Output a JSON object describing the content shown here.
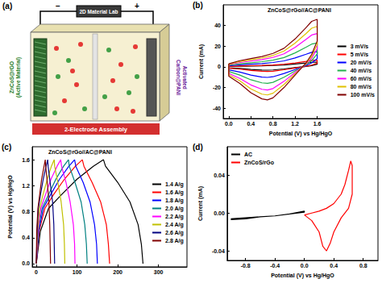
{
  "diagram": {
    "title": "(a)",
    "header": "2D Material Lab",
    "terminals": [
      "−",
      "+"
    ],
    "left_electrode": [
      "ZnCoS@rGO",
      "(Active Material)"
    ],
    "right_electrode": [
      "Activated",
      "Carbon@PANI"
    ],
    "caption": "2-Electrode Assembly"
  },
  "chart_data": [
    {
      "type": "line",
      "title": "(b)",
      "annotations": [
        "ZnCoS@rGo//AC@PANI"
      ],
      "x_label": "Potential (V) vs Hg/HgO",
      "y_label": "Current (mA)",
      "x": [
        0,
        0.2,
        0.4,
        0.6,
        0.8,
        1,
        1.2,
        1.4,
        1.5,
        1.6,
        1.6,
        1.5,
        1.4,
        1.2,
        1,
        0.8,
        0.7,
        0.6,
        0.4,
        0.2,
        0,
        0
      ],
      "series": [
        {
          "name": "3 mV/s",
          "color": "#000000",
          "values": [
            0.3,
            0.6,
            0.8,
            1,
            1.3,
            1.8,
            2.7,
            3.8,
            4.4,
            4.6,
            2.5,
            1.2,
            0.4,
            -0.8,
            -2,
            -3,
            -3.2,
            -3.1,
            -2.5,
            -1.6,
            -0.9,
            0.3
          ]
        },
        {
          "name": "5 mV/s",
          "color": "#ff0000",
          "values": [
            0.4,
            0.8,
            1.1,
            1.4,
            1.8,
            2.5,
            3.8,
            5.3,
            6.2,
            6.4,
            3.5,
            1.7,
            0.6,
            -1.1,
            -2.8,
            -4.2,
            -4.5,
            -4.3,
            -3.5,
            -2.2,
            -1.3,
            0.4
          ]
        },
        {
          "name": "20 mV/s",
          "color": "#0000ff",
          "values": [
            1,
            1.9,
            2.6,
            3.2,
            4.2,
            5.8,
            8.6,
            12.2,
            14.1,
            14.7,
            8,
            3.8,
            1.3,
            -2.6,
            -6.4,
            -9.6,
            -10.2,
            -9.9,
            -8,
            -5.1,
            -2.9,
            1
          ]
        },
        {
          "name": "40 mV/s",
          "color": "#22b14c",
          "values": [
            1.5,
            3,
            4,
            5,
            6.5,
            9,
            13.5,
            19,
            22,
            23,
            12.5,
            6,
            2,
            -4,
            -10,
            -15,
            -16,
            -15.5,
            -12.5,
            -8,
            -4.5,
            1.5
          ]
        },
        {
          "name": "60 mV/s",
          "color": "#ff00ff",
          "values": [
            2.1,
            4.2,
            5.6,
            7,
            9.1,
            12.6,
            18.9,
            26.6,
            30.8,
            32.2,
            17.5,
            8.4,
            2.8,
            -5.6,
            -14,
            -21,
            -22.4,
            -21.7,
            -17.5,
            -11.2,
            -6.3,
            2.1
          ]
        },
        {
          "name": "80 mV/s",
          "color": "#e0c000",
          "values": [
            2.6,
            5.1,
            6.8,
            8.5,
            11,
            15.3,
            23,
            32.3,
            37.4,
            39.1,
            21.3,
            10.2,
            3.4,
            -6.8,
            -17,
            -25.5,
            -27.2,
            -26.4,
            -21.3,
            -13.6,
            -7.7,
            2.6
          ]
        },
        {
          "name": "100 mV/s",
          "color": "#800000",
          "values": [
            3,
            6,
            8,
            10,
            13,
            18,
            27,
            38,
            44,
            46,
            25,
            12,
            4,
            -8,
            -20,
            -30,
            -32,
            -31,
            -25,
            -16,
            -9,
            3
          ]
        }
      ],
      "xlim": [
        -0.1,
        2.7
      ],
      "xticks": [
        {
          "value": 0,
          "label": "0.0"
        },
        0.4,
        0.8,
        1.2,
        1.6
      ],
      "ylim": [
        -50,
        60
      ],
      "yticks": [
        -40,
        -20,
        0,
        20,
        40
      ],
      "grid": false,
      "legend": "right"
    },
    {
      "type": "line",
      "title": "(c)",
      "annotations": [
        "ZnCoS@rGo//AC@PANI"
      ],
      "y_label": "Potential (V) vs Hg/HgO",
      "series": [
        {
          "name": "1.4 A/g",
          "color": "#000000",
          "x": [
            0,
            10,
            30,
            60,
            100,
            140,
            165,
            170,
            200,
            230,
            250,
            258,
            262
          ],
          "values": [
            0,
            0.5,
            0.85,
            1.05,
            1.3,
            1.5,
            1.6,
            1.5,
            1.25,
            0.95,
            0.6,
            0.3,
            0
          ]
        },
        {
          "name": "1.6 A/g",
          "color": "#ff0000",
          "x": [
            0,
            7,
            21,
            41,
            69,
            96,
            113,
            117,
            137,
            158,
            172,
            177,
            180
          ],
          "values": [
            0,
            0.5,
            0.85,
            1.05,
            1.3,
            1.5,
            1.6,
            1.5,
            1.25,
            0.95,
            0.6,
            0.3,
            0
          ]
        },
        {
          "name": "1.8 A/g",
          "color": "#0000ff",
          "x": [
            0,
            6,
            17,
            34,
            57,
            80,
            94,
            97,
            115,
            132,
            143,
            148,
            150
          ],
          "values": [
            0,
            0.5,
            0.85,
            1.05,
            1.3,
            1.5,
            1.6,
            1.5,
            1.25,
            0.95,
            0.6,
            0.3,
            0
          ]
        },
        {
          "name": "2.0 A/g",
          "color": "#008080",
          "x": [
            0,
            5,
            14,
            29,
            48,
            67,
            79,
            81,
            95,
            110,
            119,
            123,
            125
          ],
          "values": [
            0,
            0.5,
            0.85,
            1.05,
            1.3,
            1.5,
            1.6,
            1.5,
            1.25,
            0.95,
            0.6,
            0.3,
            0
          ]
        },
        {
          "name": "2.2 A/g",
          "color": "#ff00ff",
          "x": [
            0,
            4,
            11,
            22,
            36,
            51,
            60,
            62,
            73,
            83,
            91,
            94,
            95
          ],
          "values": [
            0,
            0.5,
            0.85,
            1.05,
            1.3,
            1.5,
            1.6,
            1.5,
            1.25,
            0.95,
            0.6,
            0.3,
            0
          ]
        },
        {
          "name": "2.4 A/g",
          "color": "#c0c000",
          "x": [
            0,
            3,
            8,
            16,
            27,
            37,
            44,
            45,
            53,
            61,
            67,
            69,
            70
          ],
          "values": [
            0,
            0.5,
            0.85,
            1.05,
            1.3,
            1.5,
            1.6,
            1.5,
            1.25,
            0.95,
            0.6,
            0.3,
            0
          ]
        },
        {
          "name": "2.6 A/g",
          "color": "#000080",
          "x": [
            0,
            2,
            5,
            10,
            17,
            24,
            28,
            29,
            34,
            40,
            43,
            44,
            45
          ],
          "values": [
            0,
            0.5,
            0.85,
            1.05,
            1.3,
            1.5,
            1.6,
            1.5,
            1.25,
            0.95,
            0.6,
            0.3,
            0
          ]
        },
        {
          "name": "2.8 A/g",
          "color": "#800000",
          "x": [
            0,
            1,
            4,
            8,
            13,
            19,
            22,
            23,
            27,
            31,
            33,
            34,
            35
          ],
          "values": [
            0,
            0.5,
            0.85,
            1.05,
            1.3,
            1.5,
            1.6,
            1.5,
            1.25,
            0.95,
            0.6,
            0.3,
            0
          ]
        }
      ],
      "xlim": [
        -10,
        370
      ],
      "xticks": [
        0,
        100,
        200,
        300
      ],
      "ylim": [
        -0.05,
        1.8
      ],
      "yticks": [
        {
          "value": 0,
          "label": "0.0"
        },
        0.4,
        0.8,
        1.2,
        1.6
      ],
      "grid": false,
      "legend": "right"
    },
    {
      "type": "line",
      "title": "(d)",
      "x_label": "Potential (V) vs Hg/HgO",
      "y_label": "Current (mA)",
      "series": [
        {
          "name": "AC",
          "color": "#000000",
          "x": [
            -1,
            -0.8,
            -0.6,
            -0.4,
            -0.2,
            0,
            0,
            -0.2,
            -0.4,
            -0.6,
            -0.8,
            -1
          ],
          "values": [
            -0.006,
            -0.005,
            -0.004,
            -0.003,
            -0.001,
            0.002,
            0.001,
            -0.001,
            -0.003,
            -0.004,
            -0.006,
            -0.007
          ]
        },
        {
          "name": "ZnCoS/rGo",
          "color": "#ff0000",
          "x": [
            0,
            0.1,
            0.2,
            0.3,
            0.4,
            0.5,
            0.55,
            0.6,
            0.63,
            0.65,
            0.65,
            0.6,
            0.5,
            0.4,
            0.35,
            0.3,
            0.25,
            0.2,
            0.1,
            0
          ],
          "values": [
            -0.002,
            0,
            0.002,
            0.005,
            0.01,
            0.02,
            0.03,
            0.045,
            0.055,
            0.05,
            0.02,
            0.005,
            -0.005,
            -0.02,
            -0.032,
            -0.04,
            -0.035,
            -0.02,
            -0.008,
            -0.002
          ]
        }
      ],
      "xlim": [
        -1.05,
        1
      ],
      "xticks": [
        -0.8,
        -0.4,
        {
          "value": 0,
          "label": "0.0"
        },
        0.4,
        0.8
      ],
      "ylim": [
        -0.05,
        0.07
      ],
      "yticks": [
        -0.04,
        {
          "value": 0,
          "label": "0.00"
        },
        0.04
      ],
      "grid": false,
      "legend": "upper left"
    }
  ]
}
